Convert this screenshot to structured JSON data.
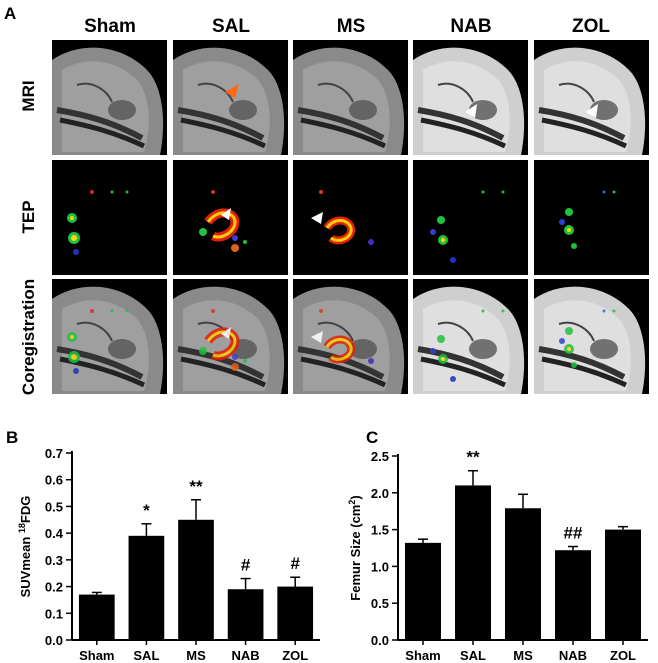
{
  "panel_a": {
    "letter": "A",
    "columns": [
      "Sham",
      "SAL",
      "MS",
      "NAB",
      "ZOL"
    ],
    "rows": [
      "MRI",
      "TEP",
      "Coregistration"
    ]
  },
  "panel_b": {
    "letter": "B"
  },
  "panel_c": {
    "letter": "C"
  },
  "chart_data": [
    {
      "type": "bar",
      "categories": [
        "Sham",
        "SAL",
        "MS",
        "NAB",
        "ZOL"
      ],
      "values": [
        0.17,
        0.39,
        0.45,
        0.19,
        0.2
      ],
      "errors": [
        0.008,
        0.045,
        0.075,
        0.04,
        0.035
      ],
      "annotations": [
        "",
        "*",
        "**",
        "#",
        "#"
      ],
      "ylabel_prefix": "SUVmean ",
      "ylabel_sup": "18",
      "ylabel_suffix": "FDG",
      "ylim": [
        0,
        0.7
      ],
      "yticks": [
        "0.0",
        "0.1",
        "0.2",
        "0.3",
        "0.4",
        "0.5",
        "0.6",
        "0.7"
      ],
      "color": "#000000"
    },
    {
      "type": "bar",
      "categories": [
        "Sham",
        "SAL",
        "MS",
        "NAB",
        "ZOL"
      ],
      "values": [
        1.32,
        2.1,
        1.79,
        1.22,
        1.5
      ],
      "errors": [
        0.05,
        0.2,
        0.19,
        0.05,
        0.04
      ],
      "annotations": [
        "",
        "**",
        "",
        "##",
        ""
      ],
      "ylabel_prefix": "Femur Size (cm",
      "ylabel_sup": "2",
      "ylabel_suffix": ")",
      "ylim": [
        0,
        2.5
      ],
      "yticks": [
        "0.0",
        "0.5",
        "1.0",
        "1.5",
        "2.0",
        "2.5"
      ],
      "color": "#000000"
    }
  ]
}
